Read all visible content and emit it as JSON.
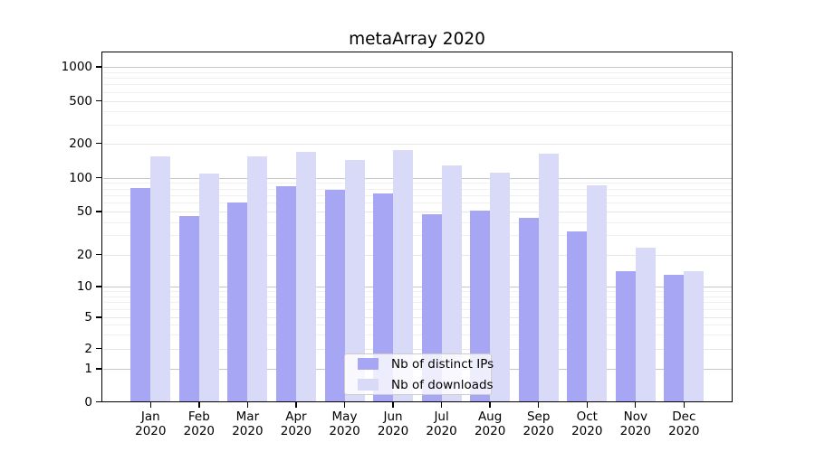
{
  "title": "metaArray 2020",
  "chart_data": {
    "type": "bar",
    "title": "metaArray 2020",
    "months": [
      "Jan",
      "Feb",
      "Mar",
      "Apr",
      "May",
      "Jun",
      "Jul",
      "Aug",
      "Sep",
      "Oct",
      "Nov",
      "Dec"
    ],
    "year": "2020",
    "series": [
      {
        "name": "Nb of distinct IPs",
        "color": "#a6a6f4",
        "values": [
          81,
          45,
          60,
          84,
          78,
          73,
          47,
          51,
          44,
          33,
          14,
          13
        ]
      },
      {
        "name": "Nb of downloads",
        "color": "#d9d9f8",
        "values": [
          154,
          108,
          154,
          168,
          142,
          175,
          127,
          111,
          162,
          85,
          23,
          14
        ]
      }
    ],
    "y_axis": {
      "scale": "symlog",
      "ticks": [
        0,
        1,
        2,
        5,
        10,
        20,
        50,
        100,
        200,
        500,
        1000
      ],
      "decade_ticks": [
        1,
        10,
        100,
        1000
      ],
      "minor_ticks": [
        3,
        4,
        6,
        7,
        8,
        9,
        30,
        40,
        60,
        70,
        80,
        90,
        300,
        400,
        600,
        700,
        800,
        900
      ],
      "ylim_bottom_label": "0"
    },
    "xlabel": "",
    "ylabel": "",
    "grid": true,
    "legend_position": "lower center",
    "legend_entries": [
      "Nb of distinct IPs",
      "Nb of downloads"
    ]
  },
  "colors": {
    "bar_dark": "#a6a6f4",
    "bar_light": "#d9d9f8",
    "grid_decade": "#c6c6c6",
    "grid_tick": "#e6e6e6",
    "grid_minor": "#f0f0f0",
    "spine": "#000000",
    "text": "#000000",
    "legend_border": "#cccccc",
    "background": "#ffffff"
  }
}
